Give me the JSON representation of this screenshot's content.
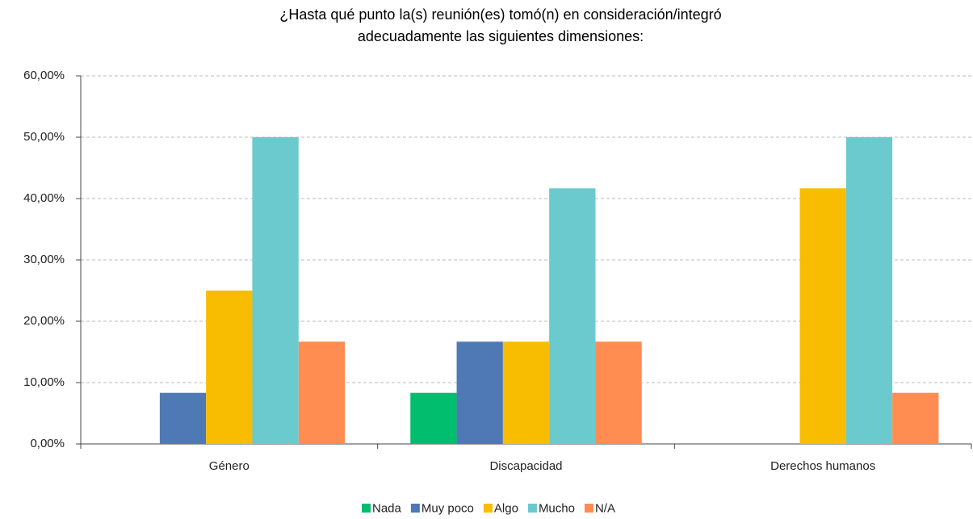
{
  "chart_data": {
    "type": "bar",
    "title": [
      "¿Hasta qué punto la(s) reunión(es) tomó(n) en consideración/integró",
      "adecuadamente las siguientes dimensiones:"
    ],
    "categories": [
      "Género",
      "Discapacidad",
      "Derechos humanos"
    ],
    "series": [
      {
        "name": "Nada",
        "color": "#00be6e",
        "values": [
          0,
          8.33,
          0
        ]
      },
      {
        "name": "Muy poco",
        "color": "#4e79b5",
        "values": [
          8.33,
          16.67,
          0
        ]
      },
      {
        "name": "Algo",
        "color": "#f8bd00",
        "values": [
          25,
          16.67,
          41.67
        ]
      },
      {
        "name": "Mucho",
        "color": "#6bcacd",
        "values": [
          50,
          41.67,
          50
        ]
      },
      {
        "name": "N/A",
        "color": "#ff8c50",
        "values": [
          16.67,
          16.67,
          8.33
        ]
      }
    ],
    "ylim": [
      0,
      60
    ],
    "yticks": [
      {
        "value": 0,
        "label": "0,00%"
      },
      {
        "value": 10,
        "label": "10,00%"
      },
      {
        "value": 20,
        "label": "20,00%"
      },
      {
        "value": 30,
        "label": "30,00%"
      },
      {
        "value": 40,
        "label": "40,00%"
      },
      {
        "value": 50,
        "label": "50,00%"
      },
      {
        "value": 60,
        "label": "60,00%"
      }
    ],
    "grid": true,
    "legend": "bottom"
  }
}
